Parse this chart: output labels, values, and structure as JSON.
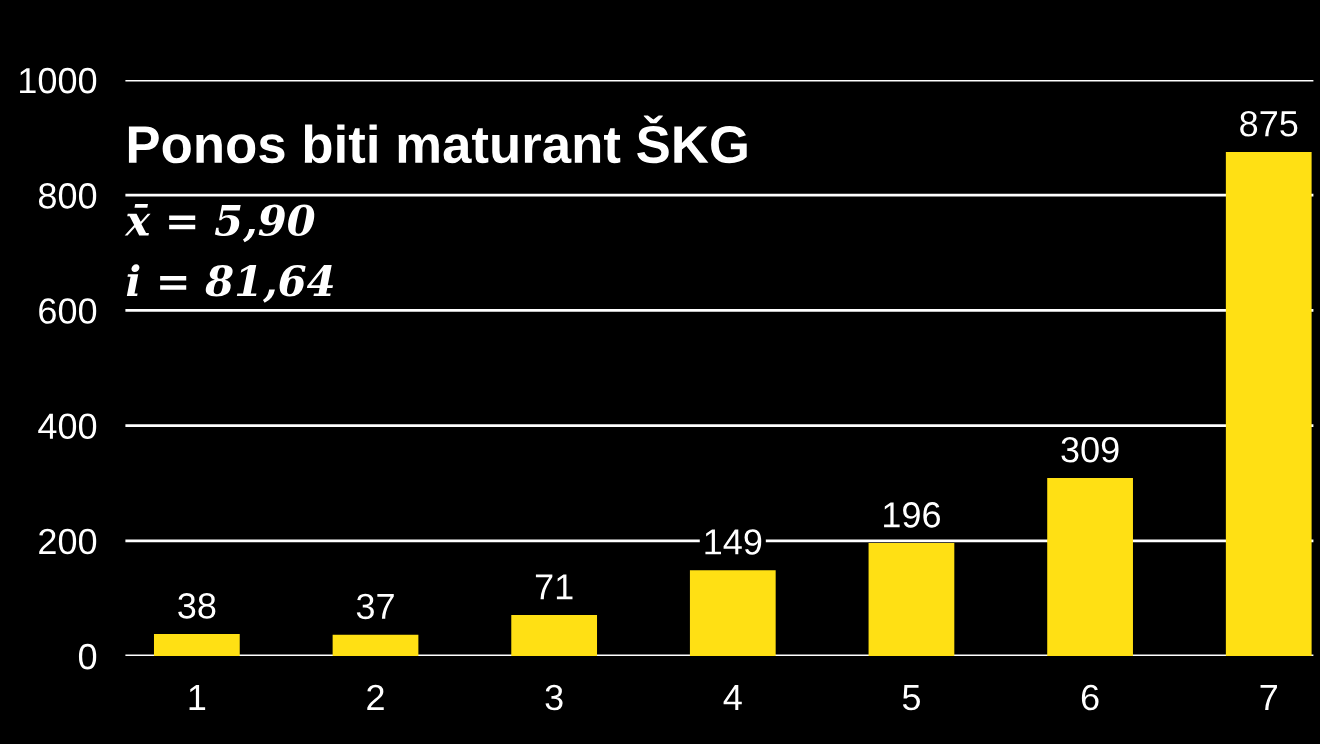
{
  "chart_data": {
    "type": "bar",
    "title": "Ponos biti maturant ŠKG",
    "annotations": [
      "x̄ = 5,90",
      "i = 81,64"
    ],
    "categories": [
      "1",
      "2",
      "3",
      "4",
      "5",
      "6",
      "7"
    ],
    "values": [
      38,
      37,
      71,
      149,
      196,
      309,
      875
    ],
    "color": "#ffe014",
    "ylim": [
      0,
      1000
    ],
    "yticks": [
      0,
      200,
      400,
      600,
      800,
      1000
    ],
    "grid": "y",
    "data_labels": true
  }
}
